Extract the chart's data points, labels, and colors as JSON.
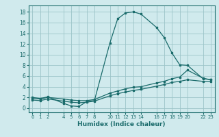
{
  "title": "",
  "xlabel": "Humidex (Indice chaleur)",
  "background_color": "#d0eaed",
  "grid_color": "#9cc4c8",
  "line_color": "#1a6b6b",
  "xlim": [
    -0.5,
    23.5
  ],
  "ylim": [
    -0.8,
    19.2
  ],
  "xticks": [
    0,
    1,
    2,
    4,
    5,
    6,
    7,
    8,
    10,
    11,
    12,
    13,
    14,
    16,
    17,
    18,
    19,
    20,
    22,
    23
  ],
  "yticks": [
    0,
    2,
    4,
    6,
    8,
    10,
    12,
    14,
    16,
    18
  ],
  "line1_x": [
    0,
    1,
    2,
    4,
    5,
    6,
    7,
    8,
    10,
    11,
    12,
    13,
    14,
    16,
    17,
    18,
    19,
    20,
    22,
    23
  ],
  "line1_y": [
    2.0,
    1.8,
    2.1,
    0.9,
    0.4,
    0.3,
    1.2,
    1.4,
    12.2,
    16.7,
    17.8,
    18.0,
    17.6,
    15.1,
    13.2,
    10.3,
    8.1,
    8.0,
    5.5,
    5.3
  ],
  "line2_x": [
    0,
    1,
    2,
    4,
    5,
    6,
    7,
    8,
    10,
    11,
    12,
    13,
    14,
    16,
    17,
    18,
    19,
    20,
    22,
    23
  ],
  "line2_y": [
    1.8,
    1.7,
    2.0,
    1.7,
    1.5,
    1.4,
    1.4,
    1.6,
    2.8,
    3.2,
    3.6,
    3.9,
    4.0,
    4.7,
    5.0,
    5.5,
    5.8,
    7.1,
    5.6,
    5.3
  ],
  "line3_x": [
    0,
    1,
    2,
    4,
    5,
    6,
    7,
    8,
    10,
    11,
    12,
    13,
    14,
    16,
    17,
    18,
    19,
    20,
    22,
    23
  ],
  "line3_y": [
    1.5,
    1.4,
    1.7,
    1.3,
    1.1,
    1.0,
    1.1,
    1.3,
    2.3,
    2.7,
    3.0,
    3.3,
    3.5,
    4.1,
    4.4,
    4.8,
    5.0,
    5.3,
    5.0,
    5.0
  ]
}
